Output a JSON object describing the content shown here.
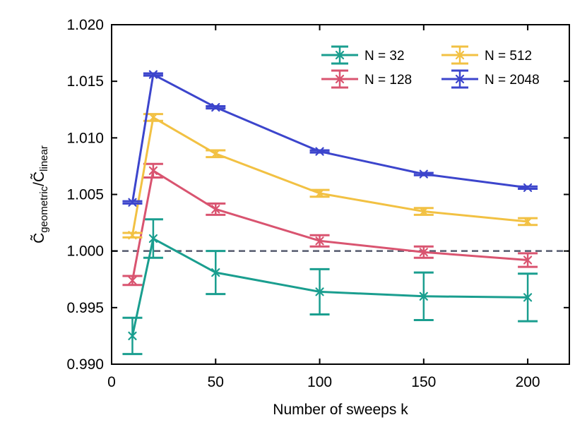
{
  "chart_data": {
    "type": "line",
    "title": "",
    "xlabel": "Number of sweeps k",
    "ylabel_main": "C̃",
    "ylabel_sub1": "geometric",
    "ylabel_slash": "/C̃",
    "ylabel_sub2": "linear",
    "xlim": [
      0,
      220
    ],
    "ylim": [
      0.99,
      1.02
    ],
    "xticks": [
      0,
      50,
      100,
      150,
      200
    ],
    "xtick_labels": [
      "0",
      "50",
      "100",
      "150",
      "200"
    ],
    "yticks": [
      0.99,
      0.995,
      1.0,
      1.005,
      1.01,
      1.015,
      1.02
    ],
    "ytick_labels": [
      "0.990",
      "0.995",
      "1.000",
      "1.005",
      "1.010",
      "1.015",
      "1.020"
    ],
    "reference_line": 1.0,
    "x": [
      10,
      20,
      50,
      100,
      150,
      200
    ],
    "series": [
      {
        "name": "N = 32",
        "color": "#1a9e8f",
        "values": [
          0.9925,
          1.0011,
          0.9981,
          0.9964,
          0.996,
          0.9959
        ],
        "errors": [
          0.0016,
          0.0017,
          0.0019,
          0.002,
          0.0021,
          0.0021
        ]
      },
      {
        "name": "N = 128",
        "color": "#d95470",
        "values": [
          0.9974,
          1.0071,
          1.0037,
          1.0009,
          0.9999,
          0.9992
        ],
        "errors": [
          0.0004,
          0.0006,
          0.0005,
          0.0005,
          0.0005,
          0.0006
        ]
      },
      {
        "name": "N = 512",
        "color": "#f2c143",
        "values": [
          1.0014,
          1.0118,
          1.0086,
          1.0051,
          1.0035,
          1.0026
        ],
        "errors": [
          0.0002,
          0.0003,
          0.0003,
          0.0003,
          0.0003,
          0.0003
        ]
      },
      {
        "name": "N = 2048",
        "color": "#3c45cc",
        "values": [
          1.0043,
          1.0156,
          1.0127,
          1.0088,
          1.0068,
          1.0056
        ],
        "errors": [
          0.0001,
          0.0001,
          0.0001,
          0.0001,
          0.0001,
          0.0001
        ]
      }
    ],
    "legend_position": "top-right"
  }
}
